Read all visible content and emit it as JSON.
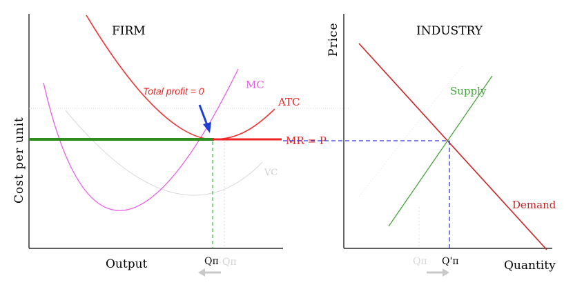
{
  "chart_data": [
    {
      "type": "line",
      "panel": "firm",
      "title": "FIRM",
      "xlabel": "Output",
      "ylabel": "Cost per unit",
      "grid": false,
      "x_tick_labels": [
        "Qπ",
        "Qπ"
      ],
      "annotation": "Total profit = 0",
      "series": [
        {
          "name": "MC",
          "color": "#e85ce8"
        },
        {
          "name": "ATC",
          "color": "#ee3333"
        },
        {
          "name": "MR = P",
          "color": "#2e8b1e"
        },
        {
          "name": "VC",
          "color": "#c8c8c8"
        }
      ]
    },
    {
      "type": "line",
      "panel": "industry",
      "title": "INDUSTRY",
      "xlabel": "Quantity",
      "ylabel": "Price",
      "grid": false,
      "x_tick_labels": [
        "Qπ",
        "Q'π"
      ],
      "series": [
        {
          "name": "Supply",
          "color": "#44a33a"
        },
        {
          "name": "Demand",
          "color": "#cc2222"
        }
      ]
    }
  ]
}
